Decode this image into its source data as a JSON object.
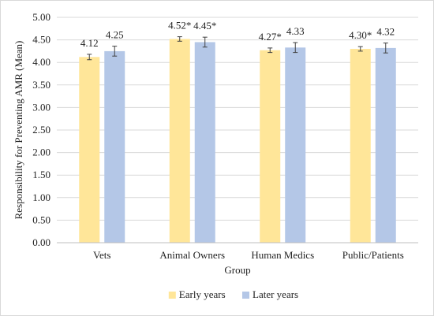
{
  "chart_data": {
    "type": "bar",
    "title": "",
    "xlabel": "Group",
    "ylabel": "Responsibility for Preventing AMR (Mean)",
    "ylim": [
      0,
      5
    ],
    "ytick_step": 0.5,
    "ytick_labels": [
      "0.00",
      "0.50",
      "1.00",
      "1.50",
      "2.00",
      "2.50",
      "3.00",
      "3.50",
      "4.00",
      "4.50",
      "5.00"
    ],
    "grid": true,
    "legend_position": "bottom",
    "categories": [
      "Vets",
      "Animal Owners",
      "Human Medics",
      "Public/Patients"
    ],
    "series": [
      {
        "name": "Early years",
        "color": "#ffe699",
        "values": [
          4.12,
          4.52,
          4.27,
          4.3
        ],
        "errors": [
          0.06,
          0.05,
          0.05,
          0.05
        ],
        "labels": [
          "4.12",
          "4.52*",
          "4.27*",
          "4.30*"
        ]
      },
      {
        "name": "Later years",
        "color": "#b4c7e7",
        "values": [
          4.25,
          4.45,
          4.33,
          4.32
        ],
        "errors": [
          0.11,
          0.11,
          0.11,
          0.11
        ],
        "labels": [
          "4.25",
          "4.45*",
          "4.33",
          "4.32"
        ]
      }
    ]
  }
}
